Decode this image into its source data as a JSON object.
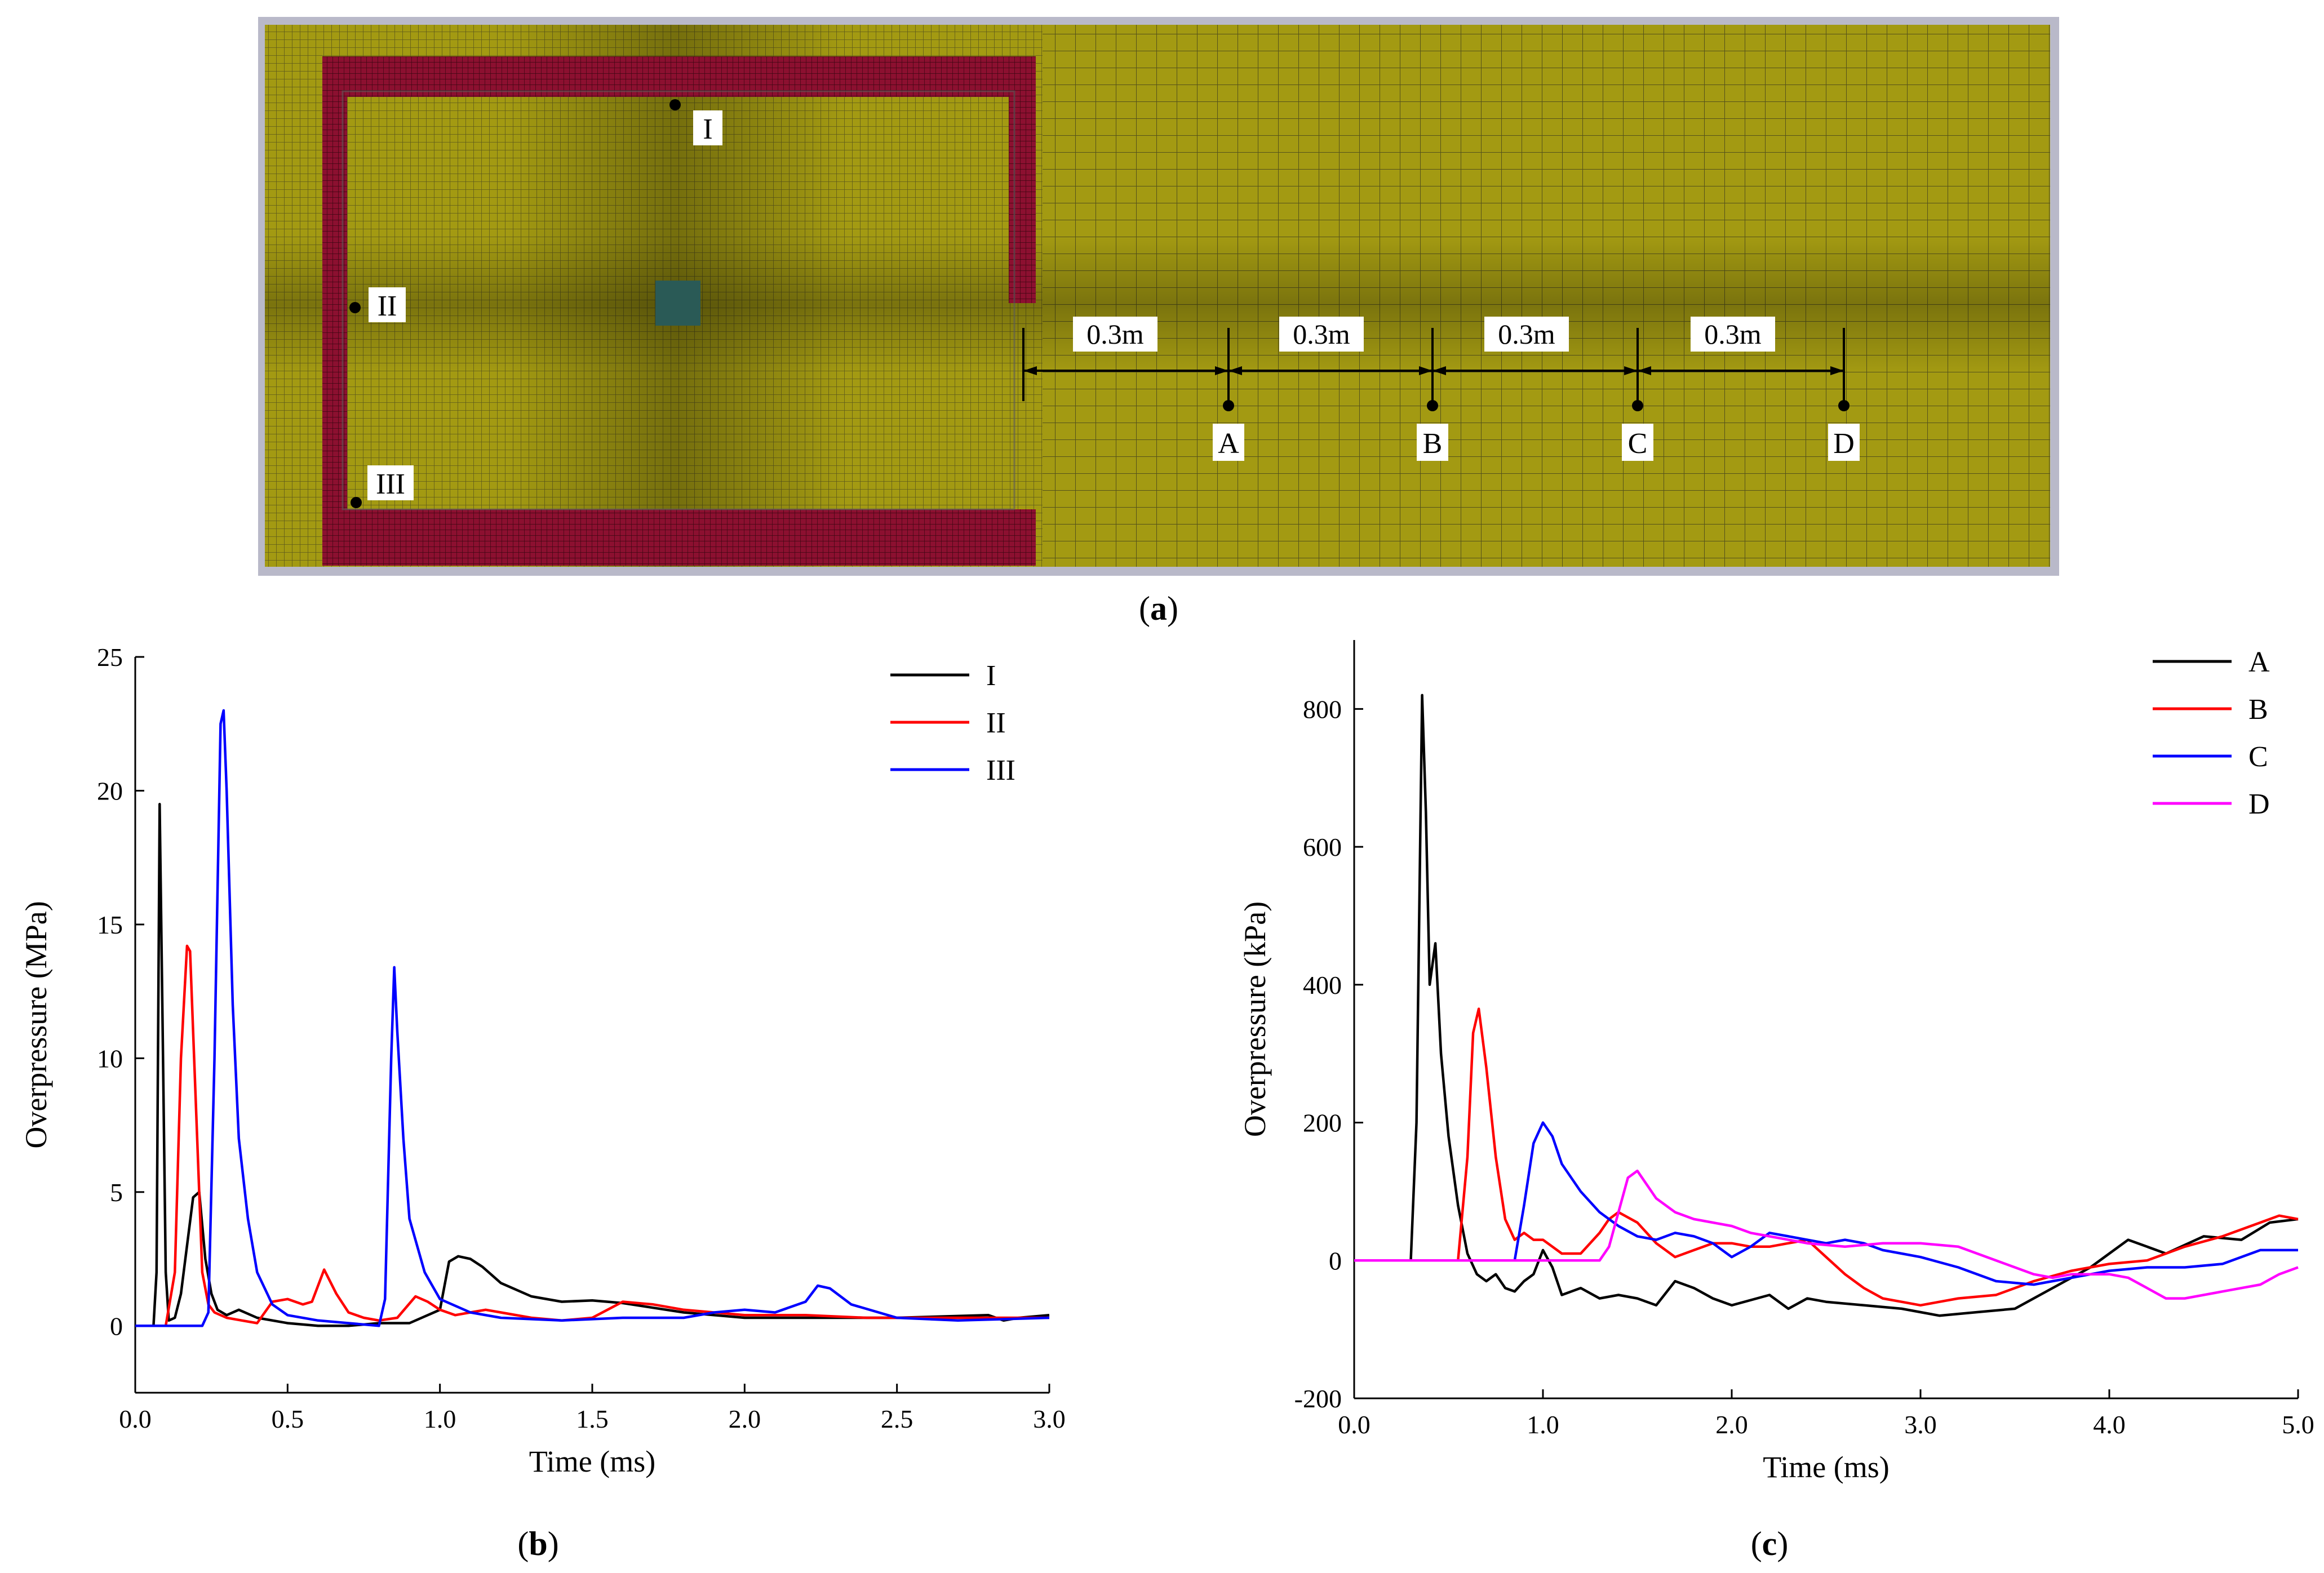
{
  "figure": {
    "panel_a_label": "a",
    "panel_b_label": "b",
    "panel_c_label": "c"
  },
  "mesh": {
    "gauges_chamber": [
      "I",
      "II",
      "III"
    ],
    "gauges_outside": [
      "A",
      "B",
      "C",
      "D"
    ],
    "spacings": [
      "0.3m",
      "0.3m",
      "0.3m",
      "0.3m"
    ],
    "colors": {
      "mesh": "#a39a12",
      "wall": "#8c1030",
      "charge": "#2a5a56",
      "frame": "#b9b9c9"
    }
  },
  "chart_data": [
    {
      "type": "line",
      "panel": "b",
      "title": "",
      "xlabel": "Time (ms)",
      "ylabel": "Overpressure (MPa)",
      "xlim": [
        0,
        3.0
      ],
      "ylim": [
        -2.5,
        25
      ],
      "xticks": [
        "0.0",
        "0.5",
        "1.0",
        "1.5",
        "2.0",
        "2.5",
        "3.0"
      ],
      "yticks": [
        "0",
        "5",
        "10",
        "15",
        "20",
        "25"
      ],
      "legend": "top-right",
      "series": [
        {
          "name": "I",
          "color": "#000000",
          "x": [
            0,
            0.06,
            0.07,
            0.08,
            0.09,
            0.1,
            0.11,
            0.13,
            0.15,
            0.17,
            0.19,
            0.21,
            0.23,
            0.25,
            0.27,
            0.3,
            0.34,
            0.4,
            0.5,
            0.6,
            0.7,
            0.8,
            0.9,
            1.0,
            1.03,
            1.06,
            1.1,
            1.14,
            1.2,
            1.3,
            1.4,
            1.5,
            1.6,
            1.8,
            2.0,
            2.2,
            2.5,
            2.8,
            2.85,
            2.9,
            3.0
          ],
          "y": [
            0,
            0,
            2,
            19.5,
            11,
            2,
            0.2,
            0.3,
            1.2,
            3.0,
            4.8,
            5.0,
            2.5,
            1.2,
            0.6,
            0.4,
            0.6,
            0.3,
            0.1,
            0,
            0,
            0.1,
            0.1,
            0.6,
            2.4,
            2.6,
            2.5,
            2.2,
            1.6,
            1.1,
            0.9,
            0.95,
            0.85,
            0.5,
            0.3,
            0.3,
            0.3,
            0.4,
            0.2,
            0.3,
            0.4
          ]
        },
        {
          "name": "II",
          "color": "#ff0000",
          "x": [
            0,
            0.1,
            0.13,
            0.15,
            0.17,
            0.18,
            0.2,
            0.22,
            0.24,
            0.26,
            0.3,
            0.35,
            0.4,
            0.45,
            0.5,
            0.55,
            0.58,
            0.62,
            0.66,
            0.7,
            0.75,
            0.8,
            0.86,
            0.92,
            0.96,
            1.0,
            1.05,
            1.1,
            1.15,
            1.2,
            1.3,
            1.4,
            1.5,
            1.6,
            1.7,
            1.8,
            2.0,
            2.2,
            2.4,
            2.6,
            3.0
          ],
          "y": [
            0,
            0,
            2,
            10,
            14.2,
            14,
            8,
            2,
            0.8,
            0.5,
            0.3,
            0.2,
            0.1,
            0.9,
            1.0,
            0.8,
            0.9,
            2.1,
            1.2,
            0.5,
            0.3,
            0.2,
            0.3,
            1.1,
            0.9,
            0.6,
            0.4,
            0.5,
            0.6,
            0.5,
            0.3,
            0.2,
            0.3,
            0.9,
            0.8,
            0.6,
            0.4,
            0.4,
            0.3,
            0.3,
            0.3
          ]
        },
        {
          "name": "III",
          "color": "#0000ff",
          "x": [
            0,
            0.22,
            0.24,
            0.26,
            0.28,
            0.29,
            0.3,
            0.32,
            0.34,
            0.37,
            0.4,
            0.45,
            0.5,
            0.6,
            0.7,
            0.8,
            0.82,
            0.84,
            0.85,
            0.86,
            0.88,
            0.9,
            0.95,
            1.0,
            1.1,
            1.2,
            1.4,
            1.6,
            1.8,
            1.9,
            2.0,
            2.1,
            2.2,
            2.24,
            2.28,
            2.35,
            2.5,
            2.7,
            3.0
          ],
          "y": [
            0,
            0,
            0.5,
            10,
            22.5,
            23.0,
            20,
            12,
            7,
            4,
            2,
            0.8,
            0.4,
            0.2,
            0.1,
            0,
            1,
            10,
            13.4,
            11,
            7,
            4,
            2,
            1,
            0.5,
            0.3,
            0.2,
            0.3,
            0.3,
            0.5,
            0.6,
            0.5,
            0.9,
            1.5,
            1.4,
            0.8,
            0.3,
            0.2,
            0.3
          ]
        }
      ]
    },
    {
      "type": "line",
      "panel": "c",
      "title": "",
      "xlabel": "Time (ms)",
      "ylabel": "Overpressure (kPa)",
      "xlim": [
        0,
        5.0
      ],
      "ylim": [
        -200,
        900
      ],
      "xticks": [
        "0.0",
        "1.0",
        "2.0",
        "3.0",
        "4.0",
        "5.0"
      ],
      "yticks": [
        "-200",
        "0",
        "200",
        "400",
        "600",
        "800"
      ],
      "legend": "top-right",
      "series": [
        {
          "name": "A",
          "color": "#000000",
          "x": [
            0,
            0.3,
            0.33,
            0.36,
            0.38,
            0.4,
            0.43,
            0.46,
            0.5,
            0.55,
            0.6,
            0.65,
            0.7,
            0.75,
            0.8,
            0.85,
            0.9,
            0.95,
            1.0,
            1.05,
            1.1,
            1.2,
            1.3,
            1.4,
            1.5,
            1.6,
            1.7,
            1.8,
            1.9,
            2.0,
            2.2,
            2.3,
            2.4,
            2.5,
            2.7,
            2.9,
            3.1,
            3.3,
            3.5,
            3.7,
            3.9,
            4.0,
            4.1,
            4.2,
            4.3,
            4.5,
            4.7,
            4.85,
            5.0
          ],
          "y": [
            0,
            0,
            200,
            820,
            650,
            400,
            460,
            300,
            180,
            80,
            10,
            -20,
            -30,
            -20,
            -40,
            -45,
            -30,
            -20,
            15,
            -10,
            -50,
            -40,
            -55,
            -50,
            -55,
            -65,
            -30,
            -40,
            -55,
            -65,
            -50,
            -70,
            -55,
            -60,
            -65,
            -70,
            -80,
            -75,
            -70,
            -40,
            -10,
            10,
            30,
            20,
            10,
            35,
            30,
            55,
            60
          ]
        },
        {
          "name": "B",
          "color": "#ff0000",
          "x": [
            0,
            0.55,
            0.6,
            0.63,
            0.66,
            0.7,
            0.75,
            0.8,
            0.85,
            0.9,
            0.95,
            1.0,
            1.05,
            1.1,
            1.2,
            1.3,
            1.35,
            1.4,
            1.5,
            1.6,
            1.7,
            1.8,
            1.9,
            2.0,
            2.1,
            2.2,
            2.3,
            2.4,
            2.5,
            2.6,
            2.7,
            2.8,
            2.9,
            3.0,
            3.1,
            3.2,
            3.4,
            3.6,
            3.8,
            4.0,
            4.2,
            4.3,
            4.4,
            4.6,
            4.8,
            4.9,
            5.0
          ],
          "y": [
            0,
            0,
            150,
            330,
            365,
            280,
            150,
            60,
            30,
            40,
            30,
            30,
            20,
            10,
            10,
            40,
            60,
            70,
            55,
            25,
            5,
            15,
            25,
            25,
            20,
            20,
            25,
            30,
            5,
            -20,
            -40,
            -55,
            -60,
            -65,
            -60,
            -55,
            -50,
            -30,
            -15,
            -5,
            0,
            10,
            20,
            35,
            55,
            65,
            60
          ]
        },
        {
          "name": "C",
          "color": "#0000ff",
          "x": [
            0,
            0.85,
            0.9,
            0.95,
            1.0,
            1.05,
            1.1,
            1.2,
            1.3,
            1.4,
            1.5,
            1.6,
            1.7,
            1.8,
            1.9,
            2.0,
            2.1,
            2.2,
            2.3,
            2.4,
            2.5,
            2.6,
            2.7,
            2.8,
            2.9,
            3.0,
            3.2,
            3.4,
            3.6,
            3.8,
            4.0,
            4.2,
            4.4,
            4.6,
            4.8,
            5.0
          ],
          "y": [
            0,
            0,
            80,
            170,
            200,
            180,
            140,
            100,
            70,
            50,
            35,
            30,
            40,
            35,
            25,
            5,
            20,
            40,
            35,
            30,
            25,
            30,
            25,
            15,
            10,
            5,
            -10,
            -30,
            -35,
            -25,
            -15,
            -10,
            -10,
            -5,
            15,
            15
          ]
        },
        {
          "name": "D",
          "color": "#ff00ff",
          "x": [
            0,
            1.3,
            1.35,
            1.4,
            1.45,
            1.5,
            1.55,
            1.6,
            1.7,
            1.8,
            1.9,
            2.0,
            2.1,
            2.2,
            2.4,
            2.6,
            2.8,
            3.0,
            3.2,
            3.4,
            3.6,
            3.7,
            3.8,
            4.0,
            4.1,
            4.2,
            4.3,
            4.4,
            4.6,
            4.8,
            4.9,
            5.0
          ],
          "y": [
            0,
            0,
            20,
            70,
            120,
            130,
            110,
            90,
            70,
            60,
            55,
            50,
            40,
            35,
            25,
            20,
            25,
            25,
            20,
            0,
            -20,
            -25,
            -20,
            -20,
            -25,
            -40,
            -55,
            -55,
            -45,
            -35,
            -20,
            -10
          ]
        }
      ]
    }
  ]
}
